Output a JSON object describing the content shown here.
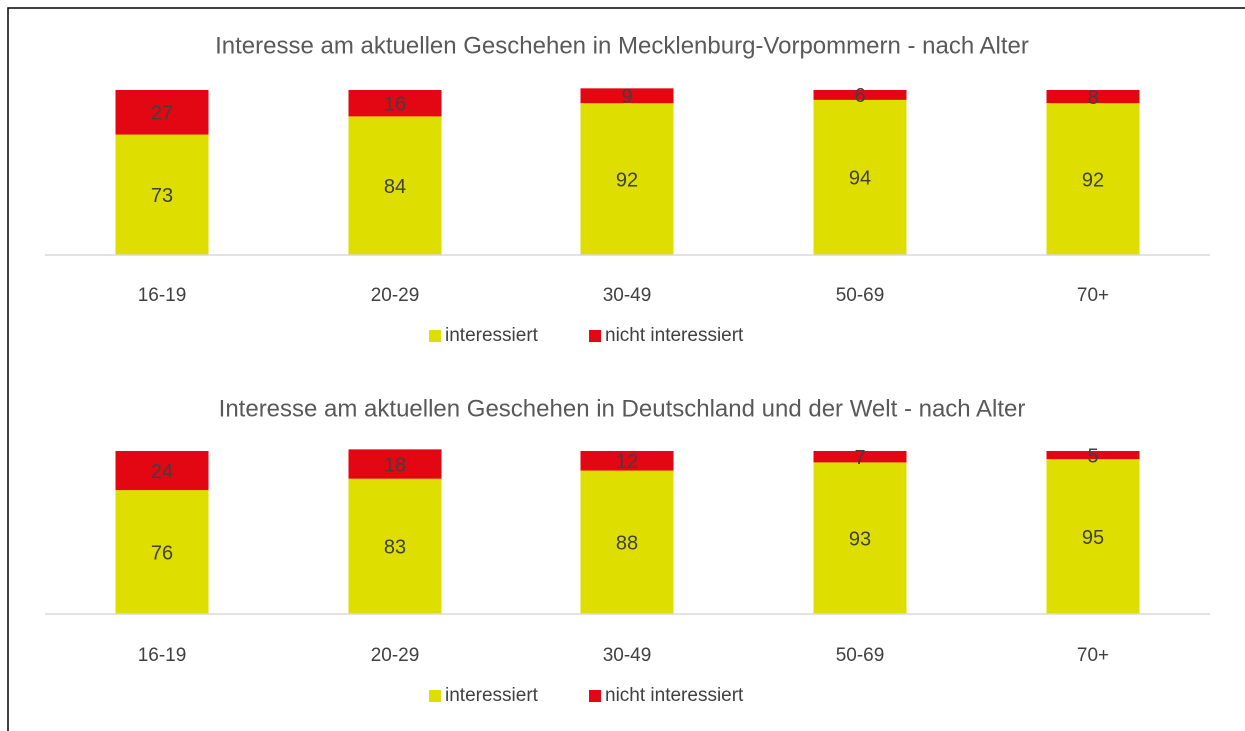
{
  "chart_data": [
    {
      "type": "bar",
      "stacked": true,
      "title": "Interesse am aktuellen Geschehen in Mecklenburg-Vorpommern - nach Alter",
      "categories": [
        "16-19",
        "20-29",
        "30-49",
        "50-69",
        "70+"
      ],
      "series": [
        {
          "name": "interessiert",
          "color": "#dede00",
          "values": [
            73,
            84,
            92,
            94,
            92
          ]
        },
        {
          "name": "nicht interessiert",
          "color": "#e30613",
          "values": [
            27,
            16,
            9,
            6,
            8
          ]
        }
      ],
      "ylim": [
        0,
        100
      ]
    },
    {
      "type": "bar",
      "stacked": true,
      "title": "Interesse am aktuellen Geschehen in Deutschland und der Welt - nach Alter",
      "categories": [
        "16-19",
        "20-29",
        "30-49",
        "50-69",
        "70+"
      ],
      "series": [
        {
          "name": "interessiert",
          "color": "#dede00",
          "values": [
            76,
            83,
            88,
            93,
            95
          ]
        },
        {
          "name": "nicht interessiert",
          "color": "#e30613",
          "values": [
            24,
            18,
            12,
            7,
            5
          ]
        }
      ],
      "ylim": [
        0,
        100
      ]
    }
  ]
}
